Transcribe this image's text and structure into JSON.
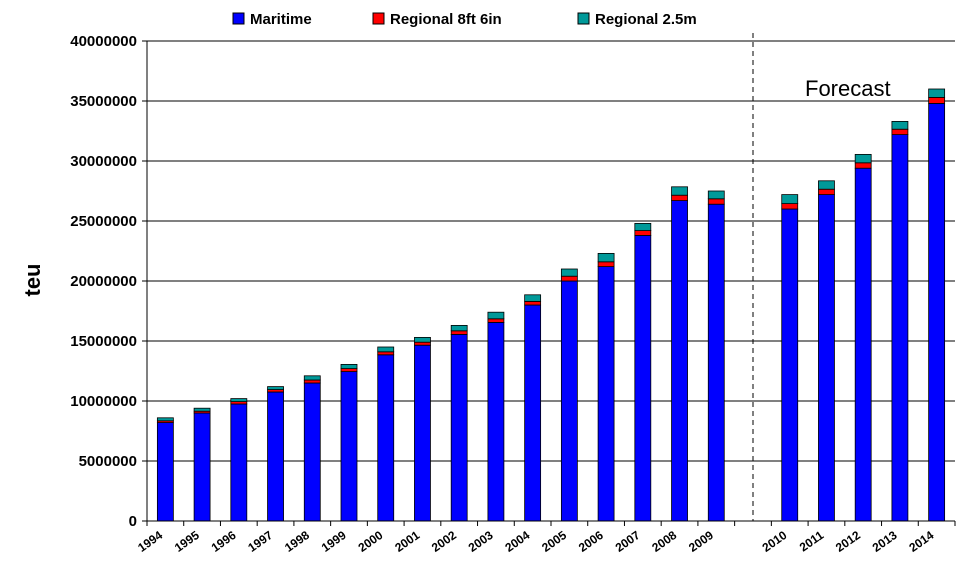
{
  "chart_data": {
    "type": "bar",
    "stacked": true,
    "title": "",
    "xlabel": "",
    "ylabel": "teu",
    "ylim": [
      0,
      40000000
    ],
    "yticks": [
      "0",
      "5000000",
      "10000000",
      "15000000",
      "20000000",
      "25000000",
      "30000000",
      "35000000",
      "40000000"
    ],
    "grid": true,
    "legend_position": "top",
    "categories": [
      "1994",
      "1995",
      "1996",
      "1997",
      "1998",
      "1999",
      "2000",
      "2001",
      "2002",
      "2003",
      "2004",
      "2005",
      "2006",
      "2007",
      "2008",
      "2009",
      "2010",
      "2011",
      "2012",
      "2013",
      "2014"
    ],
    "series": [
      {
        "name": "Maritime",
        "color": "#0000FF",
        "values": [
          8200000,
          9000000,
          9750000,
          10750000,
          11500000,
          12450000,
          13850000,
          14650000,
          15550000,
          16550000,
          18000000,
          20000000,
          21200000,
          23800000,
          26700000,
          26400000,
          26000000,
          27200000,
          29400000,
          32200000,
          34800000
        ]
      },
      {
        "name": "Regional 8ft 6in",
        "color": "#FF0000",
        "values": [
          150000,
          150000,
          200000,
          200000,
          250000,
          250000,
          250000,
          250000,
          300000,
          300000,
          300000,
          400000,
          400000,
          400000,
          450000,
          450000,
          450000,
          450000,
          450000,
          450000,
          500000
        ]
      },
      {
        "name": "Regional 2.5m",
        "color": "#009999",
        "values": [
          250000,
          250000,
          250000,
          250000,
          350000,
          350000,
          400000,
          400000,
          450000,
          550000,
          550000,
          600000,
          700000,
          600000,
          700000,
          650000,
          750000,
          700000,
          700000,
          650000,
          700000
        ]
      }
    ],
    "annotations": [
      {
        "text": "Forecast",
        "type": "divider_after_category",
        "after": "2009"
      }
    ]
  },
  "icons": {
    "legend_swatch": "square-swatch-icon"
  }
}
